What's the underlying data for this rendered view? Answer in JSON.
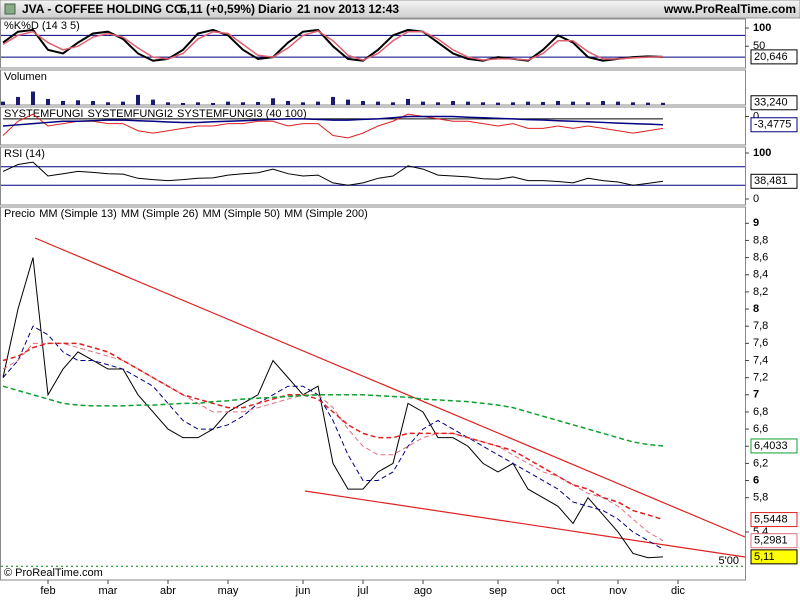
{
  "header": {
    "title": "JVA - COFFEE HOLDING CO.",
    "price": "5,11 (+0,59%)",
    "period": "Diario",
    "datetime": "21 nov 2013 12:43",
    "site": "www.ProRealTime.com"
  },
  "footer": "© ProRealTime.com",
  "chart_data": [
    {
      "type": "line",
      "title": "%K%D (14 3 5)",
      "ylim": [
        -10,
        125
      ],
      "yticks": [
        100,
        50
      ],
      "levels": [
        80,
        20
      ],
      "level_color": "#000080",
      "series": [
        {
          "name": "%K",
          "color": "#000000",
          "width": 2,
          "last_label": "20,646",
          "values": [
            60,
            90,
            95,
            40,
            30,
            60,
            85,
            90,
            70,
            30,
            10,
            15,
            40,
            85,
            95,
            80,
            40,
            15,
            20,
            60,
            90,
            95,
            50,
            15,
            10,
            40,
            80,
            95,
            90,
            60,
            30,
            15,
            10,
            20,
            15,
            10,
            40,
            80,
            60,
            20,
            10,
            15,
            20,
            22,
            20.646,
            null
          ]
        },
        {
          "name": "%D",
          "color": "#e06070",
          "width": 1.5,
          "values": [
            55,
            80,
            90,
            60,
            40,
            50,
            75,
            85,
            75,
            45,
            20,
            15,
            30,
            70,
            90,
            85,
            55,
            25,
            20,
            45,
            80,
            92,
            65,
            25,
            12,
            30,
            65,
            90,
            90,
            70,
            40,
            20,
            12,
            15,
            15,
            12,
            30,
            65,
            65,
            35,
            15,
            15,
            18,
            20,
            21,
            null
          ]
        }
      ]
    },
    {
      "type": "bar",
      "title": "Volumen",
      "ylim": [
        0,
        520
      ],
      "color": "#1a1a6e",
      "last_label": "33,240",
      "values": [
        50,
        120,
        200,
        90,
        60,
        70,
        60,
        40,
        50,
        150,
        80,
        40,
        30,
        40,
        30,
        50,
        40,
        45,
        100,
        60,
        40,
        50,
        120,
        80,
        60,
        50,
        40,
        90,
        50,
        40,
        60,
        50,
        40,
        35,
        40,
        50,
        45,
        60,
        50,
        40,
        60,
        50,
        40,
        35,
        33.24,
        null
      ]
    },
    {
      "type": "line",
      "title": "",
      "ylim": [
        -12,
        4
      ],
      "yticks": [
        0
      ],
      "series": [
        {
          "name": "SYSTEMFUNGI",
          "color": "#000000",
          "width": 1,
          "values": [
            -1,
            -1,
            -1,
            -1,
            -1,
            -1,
            -1,
            -1,
            -1,
            -1,
            -1,
            -1,
            -1,
            -1,
            -1,
            -1,
            -1,
            -1,
            -1,
            -1,
            -1,
            -1,
            -1,
            -1,
            -1,
            -1,
            -1,
            -1,
            -1,
            -1,
            -1,
            -1,
            -1,
            -1,
            -1,
            -1,
            -1,
            -1,
            -1,
            -1,
            -1,
            -1,
            -1,
            -1,
            -1,
            null
          ]
        },
        {
          "name": "SYSTEMFUNGI2",
          "color": "#e02020",
          "width": 1,
          "values": [
            -8,
            -2,
            1,
            -4,
            -3,
            -2,
            -2,
            -3,
            -3,
            -6,
            -7,
            -6,
            -5,
            -4,
            -4,
            -3,
            -3,
            -2,
            -2,
            -4,
            -3,
            -3,
            -8,
            -9,
            -7,
            -4,
            -2,
            1,
            0,
            -1,
            -2,
            -2,
            -3,
            -4,
            -3,
            -5,
            -5,
            -4,
            -5,
            -4,
            -5,
            -6,
            -7,
            -6,
            -5,
            null
          ]
        },
        {
          "name": "SYSTEMFUNGI3 (40 100)",
          "color": "#000080",
          "width": 1.5,
          "last_label": "-3,4775",
          "values": [
            -4,
            -3.5,
            -3,
            -2.5,
            -2,
            -2,
            -1.8,
            -1.5,
            -1.5,
            -1.8,
            -2,
            -2.3,
            -2.5,
            -2.5,
            -2.2,
            -2,
            -1.8,
            -1.5,
            -1.2,
            -1,
            -1,
            -1.2,
            -1.5,
            -1.5,
            -1.2,
            -1,
            -0.5,
            0,
            0,
            0,
            0,
            -0.3,
            -0.5,
            -0.8,
            -1,
            -1.3,
            -1.5,
            -1.8,
            -2,
            -2.2,
            -2.5,
            -2.8,
            -3,
            -3.2,
            -3.4775,
            null
          ]
        }
      ]
    },
    {
      "type": "line",
      "title": "RSI (14)",
      "ylim": [
        -13,
        113
      ],
      "yticks": [
        100,
        0
      ],
      "levels": [
        70,
        30
      ],
      "level_color": "#000080",
      "series": [
        {
          "name": "RSI",
          "color": "#000000",
          "width": 1,
          "last_label": "38,481",
          "values": [
            60,
            75,
            80,
            50,
            55,
            60,
            58,
            55,
            54,
            45,
            42,
            40,
            42,
            45,
            46,
            52,
            55,
            57,
            65,
            55,
            50,
            52,
            35,
            30,
            35,
            45,
            50,
            72,
            65,
            52,
            50,
            48,
            44,
            43,
            48,
            40,
            40,
            38,
            35,
            45,
            40,
            37,
            30,
            34,
            38.481,
            null
          ]
        }
      ]
    },
    {
      "type": "line",
      "title": "Precio",
      "ylim": [
        4.84,
        9.19
      ],
      "yticks": [
        {
          "value": 5.4,
          "label": "5,4"
        },
        {
          "value": 5.8,
          "label": "5,8"
        },
        6,
        {
          "value": 6.2,
          "label": "6,2"
        },
        {
          "value": 6.4,
          "label": "6,4"
        },
        {
          "value": 6.6,
          "label": "6,6"
        },
        {
          "value": 6.8,
          "label": "6,8"
        },
        7,
        {
          "value": 7.2,
          "label": "7,2"
        },
        {
          "value": 7.4,
          "label": "7,4"
        },
        {
          "value": 7.6,
          "label": "7,6"
        },
        {
          "value": 7.8,
          "label": "7,8"
        },
        8,
        {
          "value": 8.2,
          "label": "8,2"
        },
        {
          "value": 8.4,
          "label": "8,4"
        },
        {
          "value": 8.6,
          "label": "8,6"
        },
        {
          "value": 8.8,
          "label": "8,8"
        },
        9
      ],
      "level": {
        "value": 5,
        "label": "5'00",
        "color": "#008000"
      },
      "categories": [
        null,
        null,
        null,
        "feb",
        null,
        null,
        null,
        "mar",
        null,
        null,
        null,
        "abr",
        null,
        null,
        null,
        "may",
        null,
        null,
        null,
        null,
        "jun",
        null,
        null,
        null,
        "jul",
        null,
        null,
        null,
        "ago",
        null,
        null,
        null,
        null,
        "sep",
        null,
        null,
        null,
        "oct",
        null,
        null,
        null,
        "nov",
        null,
        null,
        null,
        "dic"
      ],
      "series": [
        {
          "name": "Precio",
          "color": "#000000",
          "width": 1,
          "last_label": "5,11",
          "label_fill": "#ffff00",
          "values": [
            7.2,
            8.0,
            8.6,
            7.0,
            7.3,
            7.5,
            7.4,
            7.3,
            7.3,
            7.0,
            6.8,
            6.6,
            6.5,
            6.5,
            6.6,
            6.8,
            6.9,
            7.0,
            7.4,
            7.2,
            7.0,
            7.1,
            6.2,
            5.9,
            5.9,
            6.1,
            6.2,
            6.9,
            6.8,
            6.5,
            6.5,
            6.4,
            6.2,
            6.1,
            6.2,
            5.9,
            5.8,
            5.7,
            5.5,
            5.8,
            5.6,
            5.4,
            5.15,
            5.1,
            5.11,
            null
          ]
        },
        {
          "name": "MM (Simple 13)",
          "color": "#000080",
          "width": 1,
          "style": "dashed",
          "values": [
            7.2,
            7.4,
            7.8,
            7.7,
            7.5,
            7.4,
            7.4,
            7.35,
            7.3,
            7.2,
            7.1,
            6.9,
            6.7,
            6.6,
            6.6,
            6.65,
            6.75,
            6.9,
            7.0,
            7.1,
            7.1,
            7.0,
            6.7,
            6.3,
            6.0,
            6.0,
            6.1,
            6.4,
            6.6,
            6.7,
            6.6,
            6.5,
            6.4,
            6.3,
            6.2,
            6.1,
            6.0,
            5.9,
            5.75,
            5.7,
            5.65,
            5.55,
            5.4,
            5.3,
            5.2,
            null
          ]
        },
        {
          "name": "MM (Simple 26)",
          "color": "#e07080",
          "width": 1,
          "style": "dashed",
          "last_label": "5,2981",
          "values": [
            7.3,
            7.4,
            7.6,
            7.6,
            7.6,
            7.55,
            7.5,
            7.45,
            7.4,
            7.3,
            7.2,
            7.1,
            7.0,
            6.9,
            6.8,
            6.8,
            6.8,
            6.85,
            6.9,
            6.95,
            7.0,
            7.0,
            6.85,
            6.6,
            6.4,
            6.3,
            6.3,
            6.4,
            6.5,
            6.55,
            6.55,
            6.5,
            6.45,
            6.4,
            6.3,
            6.2,
            6.1,
            6.05,
            5.95,
            5.85,
            5.8,
            5.7,
            5.55,
            5.4,
            5.2981,
            null
          ]
        },
        {
          "name": "MM (Simple 50)",
          "color": "#e02020",
          "width": 1.5,
          "style": "dashed",
          "last_label": "5,5448",
          "values": [
            7.4,
            7.45,
            7.55,
            7.6,
            7.6,
            7.6,
            7.55,
            7.5,
            7.4,
            7.3,
            7.2,
            7.1,
            7.0,
            6.95,
            6.9,
            6.85,
            6.85,
            6.9,
            6.95,
            7.0,
            7.0,
            6.95,
            6.8,
            6.65,
            6.55,
            6.5,
            6.5,
            6.55,
            6.55,
            6.55,
            6.55,
            6.5,
            6.45,
            6.4,
            6.35,
            6.25,
            6.15,
            6.05,
            5.95,
            5.9,
            5.8,
            5.75,
            5.65,
            5.6,
            5.5448,
            null
          ]
        },
        {
          "name": "MM (Simple 200)",
          "color": "#10a030",
          "width": 1.5,
          "style": "dashed",
          "last_label": "6,4033",
          "values": [
            7.1,
            7.05,
            7.0,
            6.95,
            6.9,
            6.88,
            6.87,
            6.87,
            6.87,
            6.88,
            6.88,
            6.89,
            6.9,
            6.9,
            6.92,
            6.93,
            6.95,
            6.96,
            6.97,
            6.98,
            6.99,
            7.0,
            7.0,
            7.0,
            7.0,
            6.99,
            6.98,
            6.97,
            6.95,
            6.94,
            6.93,
            6.92,
            6.9,
            6.88,
            6.85,
            6.8,
            6.75,
            6.7,
            6.65,
            6.6,
            6.55,
            6.5,
            6.45,
            6.42,
            6.4033,
            null
          ]
        }
      ]
    }
  ]
}
